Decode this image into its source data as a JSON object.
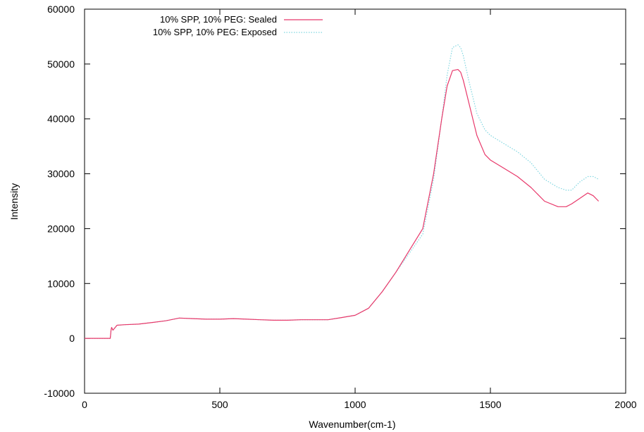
{
  "chart_data": {
    "type": "line",
    "title": "",
    "xlabel": "Wavenumber(cm-1)",
    "ylabel": "Intensity",
    "xlim": [
      0,
      2000
    ],
    "ylim": [
      -10000,
      60000
    ],
    "xticks": [
      0,
      500,
      1000,
      1500,
      2000
    ],
    "yticks": [
      -10000,
      0,
      10000,
      20000,
      30000,
      40000,
      50000,
      60000
    ],
    "grid": false,
    "legend_position": "top-left",
    "series": [
      {
        "name": "10% SPP, 10% PEG: Sealed",
        "color": "#e8386a",
        "style": "solid",
        "x": [
          0,
          95,
          98,
          100,
          105,
          120,
          150,
          200,
          250,
          300,
          350,
          400,
          450,
          500,
          550,
          600,
          650,
          700,
          750,
          800,
          850,
          900,
          950,
          1000,
          1050,
          1100,
          1150,
          1200,
          1250,
          1290,
          1320,
          1340,
          1360,
          1380,
          1390,
          1400,
          1420,
          1450,
          1480,
          1500,
          1550,
          1600,
          1650,
          1700,
          1750,
          1780,
          1800,
          1830,
          1860,
          1880,
          1900
        ],
        "y": [
          0,
          0,
          1500,
          2000,
          1500,
          2400,
          2500,
          2600,
          2900,
          3200,
          3700,
          3600,
          3500,
          3500,
          3600,
          3500,
          3400,
          3300,
          3300,
          3400,
          3400,
          3400,
          3800,
          4200,
          5500,
          8500,
          12000,
          16000,
          20000,
          30000,
          40000,
          46000,
          48800,
          49000,
          48500,
          47000,
          43000,
          37000,
          33500,
          32500,
          31000,
          29500,
          27500,
          25000,
          24000,
          24000,
          24500,
          25500,
          26500,
          26000,
          25000
        ]
      },
      {
        "name": "10% SPP, 10% PEG: Exposed",
        "color": "#7fd6e0",
        "style": "dotted",
        "x": [
          0,
          95,
          98,
          100,
          105,
          120,
          150,
          200,
          250,
          300,
          350,
          400,
          450,
          500,
          550,
          600,
          650,
          700,
          750,
          800,
          850,
          900,
          950,
          1000,
          1050,
          1100,
          1150,
          1200,
          1250,
          1290,
          1320,
          1340,
          1360,
          1380,
          1390,
          1400,
          1420,
          1450,
          1480,
          1500,
          1550,
          1600,
          1650,
          1700,
          1750,
          1780,
          1800,
          1830,
          1860,
          1880,
          1900
        ],
        "y": [
          0,
          0,
          1500,
          2000,
          1500,
          2400,
          2500,
          2600,
          2900,
          3200,
          3700,
          3600,
          3500,
          3500,
          3600,
          3500,
          3400,
          3300,
          3300,
          3400,
          3400,
          3400,
          3800,
          4200,
          5500,
          8500,
          12000,
          15500,
          19000,
          29000,
          40000,
          48000,
          53000,
          53500,
          53000,
          51500,
          47000,
          41000,
          38000,
          37000,
          35500,
          34000,
          32000,
          29000,
          27500,
          27000,
          27000,
          28500,
          29500,
          29500,
          29000
        ]
      }
    ]
  }
}
